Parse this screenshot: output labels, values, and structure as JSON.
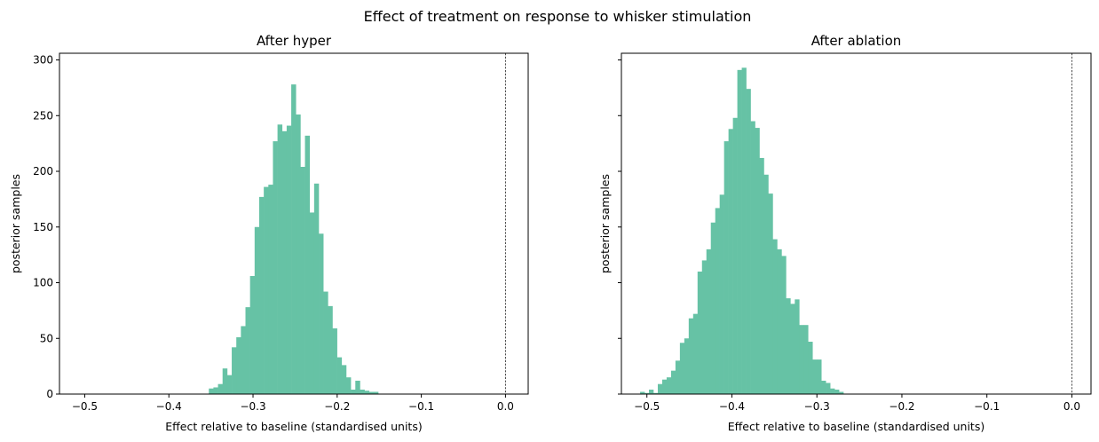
{
  "figure": {
    "suptitle": "Effect of treatment on response to whisker stimulation"
  },
  "colors": {
    "bar": "#66c2a5",
    "axis": "#000000",
    "ref_line": "#000000"
  },
  "chart_data": [
    {
      "type": "bar",
      "title": "After hyper",
      "xlabel": "Effect relative to baseline (standardised units)",
      "ylabel": "posterior samples",
      "xlim": [
        -0.53,
        0.027
      ],
      "ylim": [
        0,
        306
      ],
      "xticks": [
        -0.5,
        -0.4,
        -0.3,
        -0.2,
        -0.1,
        0.0
      ],
      "xtick_labels": [
        "−0.5",
        "−0.4",
        "−0.3",
        "−0.2",
        "−0.1",
        "0.0"
      ],
      "yticks": [
        0,
        50,
        100,
        150,
        200,
        250,
        300
      ],
      "ytick_labels": [
        "0",
        "50",
        "100",
        "150",
        "200",
        "250",
        "300"
      ],
      "reference_line_x": 0.0,
      "bin_start": -0.3525,
      "bin_width": 0.00544,
      "values": [
        5,
        6,
        9,
        23,
        17,
        42,
        51,
        61,
        78,
        106,
        150,
        177,
        186,
        188,
        227,
        242,
        236,
        241,
        278,
        251,
        204,
        232,
        163,
        189,
        144,
        92,
        79,
        59,
        33,
        26,
        15,
        4,
        12,
        4,
        3,
        2,
        2
      ]
    },
    {
      "type": "bar",
      "title": "After ablation",
      "xlabel": "Effect relative to baseline (standardised units)",
      "ylabel": "posterior samples",
      "xlim": [
        -0.53,
        0.0225
      ],
      "ylim": [
        0,
        306
      ],
      "xticks": [
        -0.5,
        -0.4,
        -0.3,
        -0.2,
        -0.1,
        0.0
      ],
      "xtick_labels": [
        "−0.5",
        "−0.4",
        "−0.3",
        "−0.2",
        "−0.1",
        "0.0"
      ],
      "yticks": [
        0,
        50,
        100,
        150,
        200,
        250,
        300
      ],
      "ytick_labels": [
        "",
        "",
        "",
        "",
        "",
        "",
        ""
      ],
      "reference_line_x": 0.0,
      "bin_start": -0.508,
      "bin_width": 0.0052,
      "values": [
        2,
        1,
        4,
        1,
        9,
        13,
        15,
        21,
        30,
        46,
        50,
        68,
        72,
        110,
        120,
        130,
        154,
        167,
        179,
        227,
        238,
        248,
        291,
        293,
        274,
        245,
        239,
        212,
        197,
        180,
        139,
        130,
        124,
        86,
        81,
        85,
        62,
        62,
        47,
        31,
        31,
        12,
        10,
        5,
        4,
        2
      ]
    }
  ]
}
